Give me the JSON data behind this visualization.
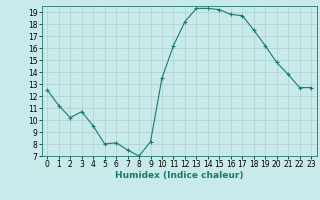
{
  "x": [
    0,
    1,
    2,
    3,
    4,
    5,
    6,
    7,
    8,
    9,
    10,
    11,
    12,
    13,
    14,
    15,
    16,
    17,
    18,
    19,
    20,
    21,
    22,
    23
  ],
  "y": [
    12.5,
    11.2,
    10.2,
    10.7,
    9.5,
    8.0,
    8.1,
    7.5,
    7.0,
    8.2,
    13.5,
    16.2,
    18.2,
    19.3,
    19.3,
    19.2,
    18.8,
    18.7,
    17.5,
    16.2,
    14.8,
    13.8,
    12.7,
    12.7
  ],
  "line_color": "#1a7a6e",
  "marker": "+",
  "bg_color": "#c8eaea",
  "grid_color": "#b0d0d0",
  "xlabel": "Humidex (Indice chaleur)",
  "ylim": [
    7,
    19.5
  ],
  "xlim": [
    -0.5,
    23.5
  ],
  "yticks": [
    7,
    8,
    9,
    10,
    11,
    12,
    13,
    14,
    15,
    16,
    17,
    18,
    19
  ],
  "xticks": [
    0,
    1,
    2,
    3,
    4,
    5,
    6,
    7,
    8,
    9,
    10,
    11,
    12,
    13,
    14,
    15,
    16,
    17,
    18,
    19,
    20,
    21,
    22,
    23
  ],
  "label_fontsize": 6.5,
  "tick_fontsize": 5.5
}
